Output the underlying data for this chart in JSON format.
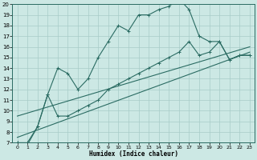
{
  "xlabel": "Humidex (Indice chaleur)",
  "bg_color": "#cce8e4",
  "line_color": "#2a6b62",
  "grid_color": "#a8ccc8",
  "ylim": [
    7,
    20
  ],
  "xlim": [
    -0.5,
    23.5
  ],
  "yticks": [
    7,
    8,
    9,
    10,
    11,
    12,
    13,
    14,
    15,
    16,
    17,
    18,
    19,
    20
  ],
  "xticks": [
    0,
    1,
    2,
    3,
    4,
    5,
    6,
    7,
    8,
    9,
    10,
    11,
    12,
    13,
    14,
    15,
    16,
    17,
    18,
    19,
    20,
    21,
    22,
    23
  ],
  "series": [
    {
      "x": [
        0,
        1,
        2,
        3,
        4,
        5,
        6,
        7,
        8,
        9,
        10,
        11,
        12,
        13,
        14,
        15,
        16,
        17,
        18,
        19,
        20,
        21,
        22,
        23
      ],
      "y": [
        7.0,
        6.8,
        8.5,
        11.5,
        14.0,
        13.5,
        12.0,
        13.0,
        15.0,
        16.5,
        18.0,
        17.5,
        19.0,
        19.0,
        19.5,
        19.8,
        20.5,
        19.5,
        17.0,
        16.5,
        16.5,
        14.8,
        15.2,
        15.2
      ]
    },
    {
      "x": [
        0,
        23
      ],
      "y": [
        7.5,
        15.5
      ]
    },
    {
      "x": [
        0,
        23
      ],
      "y": [
        9.5,
        16.0
      ]
    },
    {
      "x": [
        0,
        1,
        2,
        3,
        4,
        5,
        6,
        7,
        8,
        9,
        10,
        11,
        12,
        13,
        14,
        15,
        16,
        17,
        18,
        19,
        20,
        21,
        22,
        23
      ],
      "y": [
        7.0,
        7.0,
        8.5,
        11.5,
        9.5,
        9.5,
        10.0,
        10.5,
        11.0,
        12.0,
        12.5,
        13.0,
        13.5,
        14.0,
        14.5,
        15.0,
        15.5,
        16.5,
        15.2,
        15.5,
        16.5,
        14.8,
        15.2,
        15.2
      ]
    }
  ]
}
